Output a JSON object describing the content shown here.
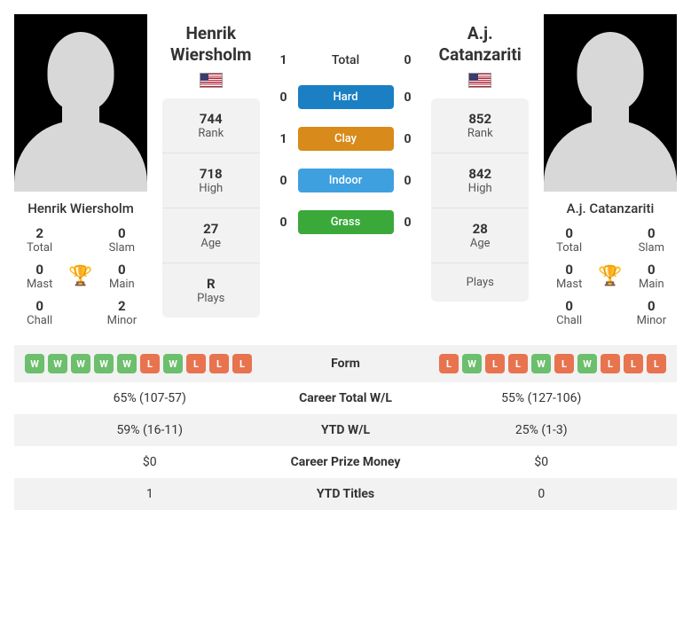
{
  "p1": {
    "name": "Henrik Wiersholm",
    "country": "USA",
    "rank": "744",
    "high": "718",
    "age": "27",
    "plays": "R",
    "titles": {
      "total": "2",
      "slam": "0",
      "mast": "0",
      "main": "0",
      "chall": "0",
      "minor": "2"
    },
    "form": [
      "W",
      "W",
      "W",
      "W",
      "W",
      "L",
      "W",
      "L",
      "L",
      "L"
    ],
    "career_wl": "65% (107-57)",
    "ytd_wl": "59% (16-11)",
    "prize": "$0",
    "ytd_titles": "1"
  },
  "p2": {
    "name": "A.j. Catanzariti",
    "country": "USA",
    "rank": "852",
    "high": "842",
    "age": "28",
    "plays": "",
    "titles": {
      "total": "0",
      "slam": "0",
      "mast": "0",
      "main": "0",
      "chall": "0",
      "minor": "0"
    },
    "form": [
      "L",
      "W",
      "L",
      "L",
      "W",
      "L",
      "W",
      "L",
      "L",
      "L"
    ],
    "career_wl": "55% (127-106)",
    "ytd_wl": "25% (1-3)",
    "prize": "$0",
    "ytd_titles": "0"
  },
  "h2h": {
    "total": {
      "l": "1",
      "r": "0"
    },
    "surfaces": [
      {
        "name": "Hard",
        "l": "0",
        "r": "0",
        "color": "#1b7fc4"
      },
      {
        "name": "Clay",
        "l": "1",
        "r": "0",
        "color": "#d88a1b"
      },
      {
        "name": "Indoor",
        "l": "0",
        "r": "0",
        "color": "#3fa0e0"
      },
      {
        "name": "Grass",
        "l": "0",
        "r": "0",
        "color": "#3aa93a"
      }
    ]
  },
  "labels": {
    "rank": "Rank",
    "high": "High",
    "age": "Age",
    "plays": "Plays",
    "total": "Total",
    "slam": "Slam",
    "mast": "Mast",
    "main": "Main",
    "chall": "Chall",
    "minor": "Minor",
    "h2h_total": "Total",
    "form": "Form",
    "career_wl": "Career Total W/L",
    "ytd_wl": "YTD W/L",
    "prize": "Career Prize Money",
    "ytd_titles": "YTD Titles"
  }
}
